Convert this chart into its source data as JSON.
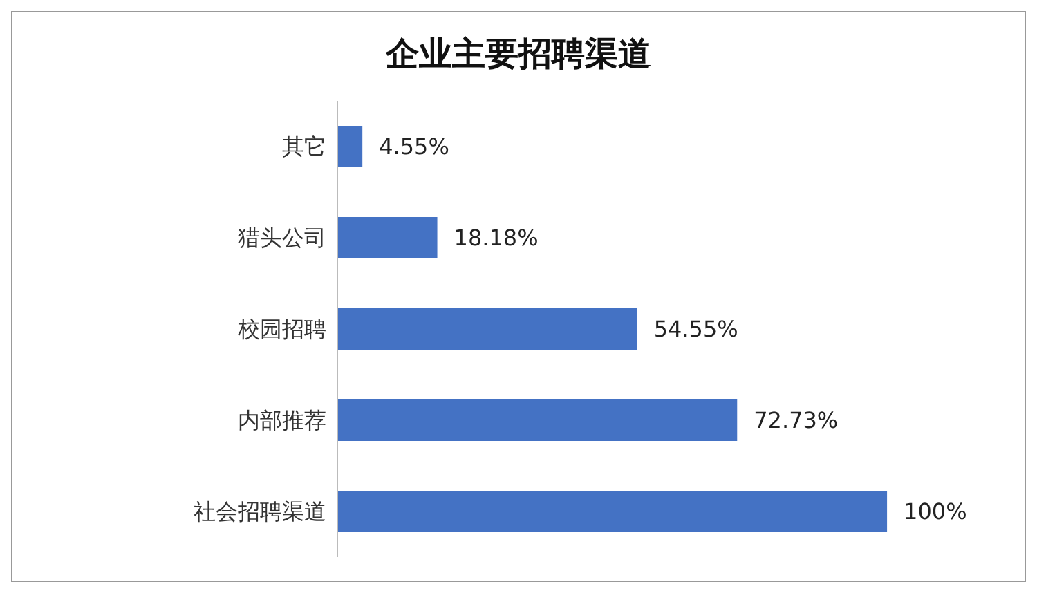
{
  "chart_data": {
    "type": "bar",
    "orientation": "horizontal",
    "title": "企业主要招聘渠道",
    "categories": [
      "其它",
      "猎头公司",
      "校园招聘",
      "内部推荐",
      "社会招聘渠道"
    ],
    "values": [
      4.55,
      18.18,
      54.55,
      72.73,
      100
    ],
    "value_labels": [
      "4.55%",
      "18.18%",
      "54.55%",
      "72.73%",
      "100%"
    ],
    "color": "#4472c4"
  }
}
